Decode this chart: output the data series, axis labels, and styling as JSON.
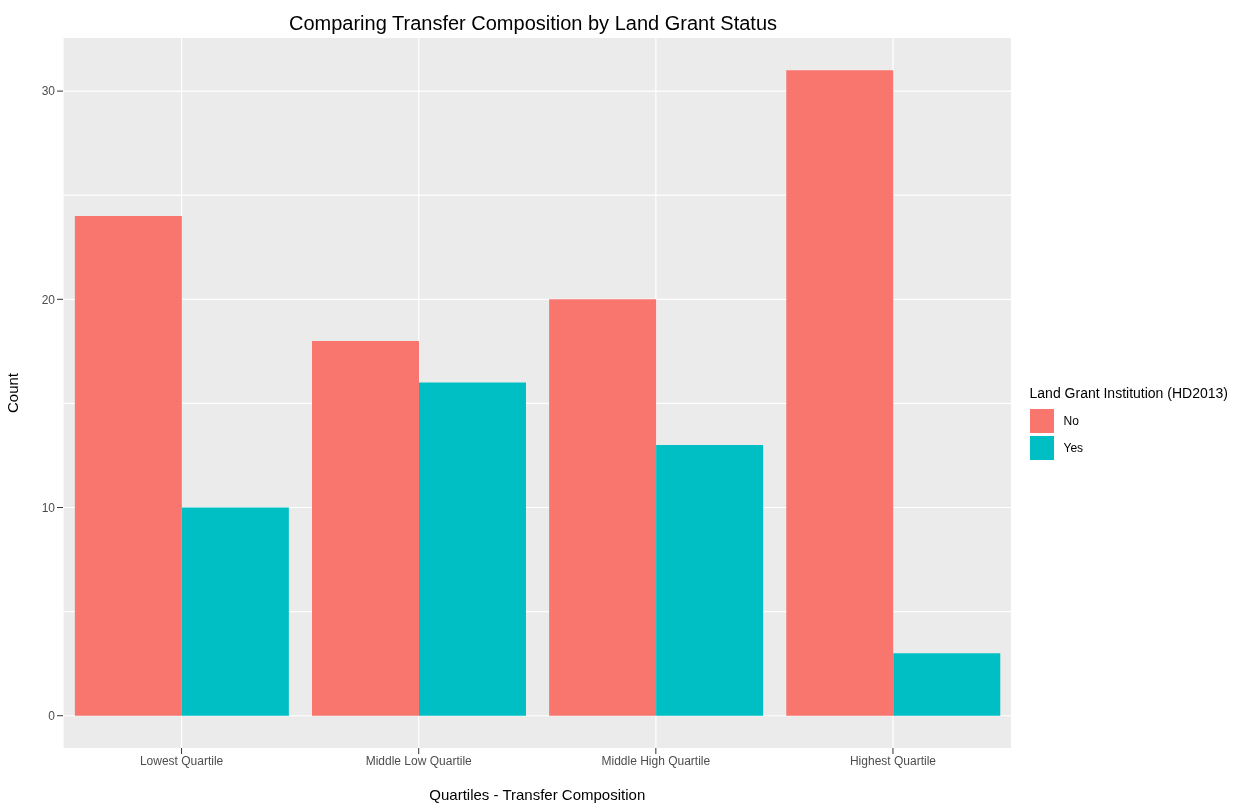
{
  "chart_data": {
    "type": "bar",
    "title": "Comparing Transfer Composition by Land Grant Status",
    "xlabel": "Quartiles - Transfer Composition",
    "ylabel": "Count",
    "legend_title": "Land Grant Institution (HD2013)",
    "categories": [
      "Lowest Quartile",
      "Middle Low Quartile",
      "Middle High Quartile",
      "Highest Quartile"
    ],
    "series": [
      {
        "name": "No",
        "color": "#f8766d",
        "values": [
          24,
          18,
          20,
          31
        ]
      },
      {
        "name": "Yes",
        "color": "#00bfc4",
        "values": [
          10,
          16,
          13,
          3
        ]
      }
    ],
    "ylim": [
      -1.55,
      32.55
    ],
    "yticks": [
      0,
      10,
      20,
      30
    ],
    "grid": true,
    "legend": "right"
  }
}
